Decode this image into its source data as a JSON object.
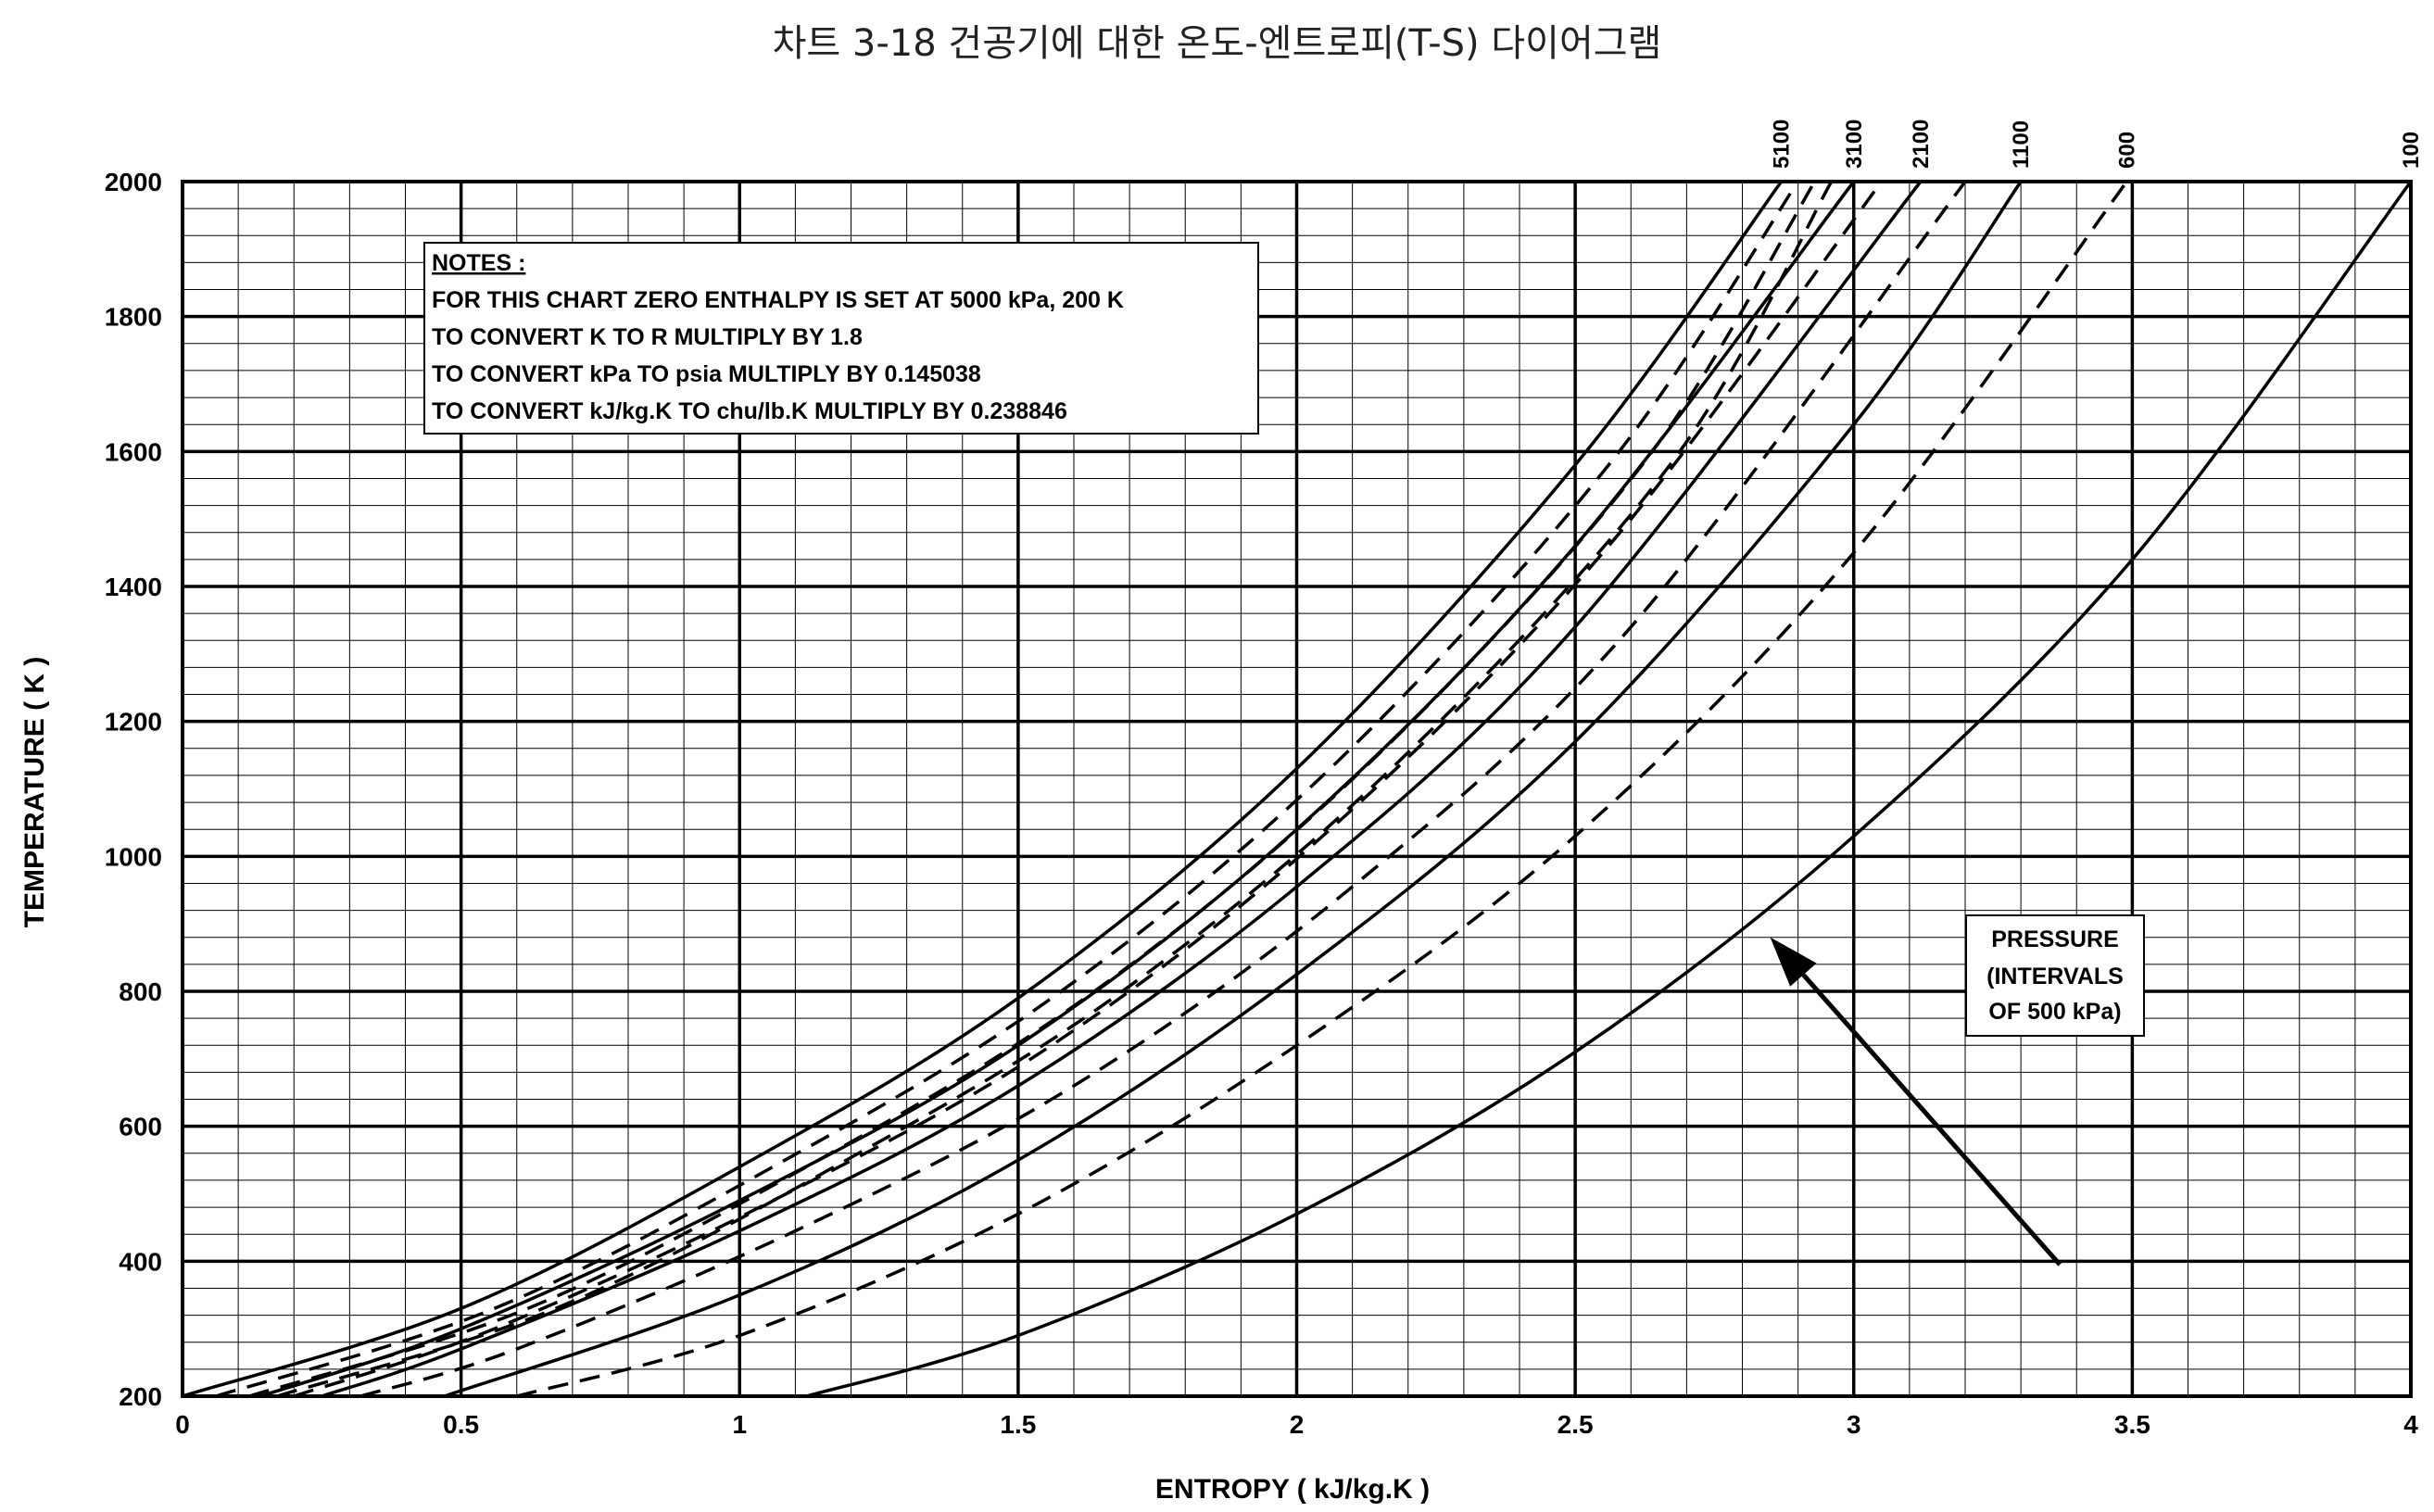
{
  "title": "차트 3-18 건공기에 대한 온도-엔트로피(T-S) 다이어그램",
  "chart_data": {
    "type": "line",
    "xlabel": "ENTROPY ( kJ/kg.K )",
    "ylabel": "TEMPERATURE ( K )",
    "xlim": [
      0,
      4
    ],
    "ylim": [
      200,
      2000
    ],
    "x_ticks": [
      "0",
      "0.5",
      "1",
      "1.5",
      "2",
      "2.5",
      "3",
      "3.5",
      "4"
    ],
    "y_ticks": [
      "200",
      "400",
      "600",
      "800",
      "1000",
      "1200",
      "1400",
      "1600",
      "1800",
      "2000"
    ],
    "grid": true,
    "series": [
      {
        "name": "5100",
        "style": "solid",
        "x": [
          0.0,
          0.5,
          1.0,
          1.5,
          2.0,
          2.5,
          2.87
        ],
        "y": [
          200,
          330,
          540,
          790,
          1130,
          1580,
          2000
        ]
      },
      {
        "name": "",
        "style": "dashed",
        "x": [
          0.06,
          0.56,
          1.06,
          1.56,
          2.06,
          2.56,
          2.9
        ],
        "y": [
          200,
          330,
          540,
          790,
          1130,
          1580,
          2000
        ]
      },
      {
        "name": "",
        "style": "dashed",
        "x": [
          0.12,
          0.62,
          1.12,
          1.62,
          2.12,
          2.62,
          2.93
        ],
        "y": [
          200,
          330,
          540,
          790,
          1130,
          1580,
          2000
        ]
      },
      {
        "name": "",
        "style": "dashed",
        "x": [
          0.17,
          0.67,
          1.17,
          1.67,
          2.17,
          2.67,
          2.96
        ],
        "y": [
          200,
          330,
          540,
          790,
          1130,
          1580,
          2000
        ]
      },
      {
        "name": "3100",
        "style": "solid",
        "x": [
          0.14,
          0.5,
          1.0,
          1.5,
          2.0,
          2.5,
          3.0
        ],
        "y": [
          200,
          300,
          490,
          720,
          1040,
          1460,
          2000
        ]
      },
      {
        "name": "",
        "style": "dashed",
        "x": [
          0.2,
          0.56,
          1.06,
          1.56,
          2.06,
          2.56,
          3.05
        ],
        "y": [
          200,
          300,
          490,
          720,
          1040,
          1460,
          2000
        ]
      },
      {
        "name": "2100",
        "style": "solid",
        "x": [
          0.25,
          0.5,
          1.0,
          1.5,
          2.0,
          2.5,
          3.12
        ],
        "y": [
          200,
          270,
          445,
          660,
          955,
          1340,
          2000
        ]
      },
      {
        "name": "",
        "style": "dashed",
        "x": [
          0.32,
          0.6,
          1.1,
          1.6,
          2.1,
          2.6,
          3.2
        ],
        "y": [
          200,
          270,
          445,
          660,
          955,
          1340,
          2000
        ]
      },
      {
        "name": "1100",
        "style": "solid",
        "x": [
          0.47,
          1.0,
          1.5,
          2.0,
          2.5,
          3.0,
          3.3
        ],
        "y": [
          200,
          350,
          550,
          825,
          1170,
          1640,
          2000
        ]
      },
      {
        "name": "600",
        "style": "dashed",
        "x": [
          0.6,
          1.0,
          1.5,
          2.0,
          2.5,
          3.0,
          3.49
        ],
        "y": [
          200,
          290,
          470,
          720,
          1030,
          1450,
          2000
        ]
      },
      {
        "name": "100",
        "style": "solid",
        "x": [
          1.12,
          1.5,
          2.0,
          2.5,
          3.0,
          3.5,
          4.0
        ],
        "y": [
          200,
          290,
          470,
          710,
          1030,
          1440,
          2000
        ]
      }
    ],
    "notes": {
      "heading": "NOTES :",
      "lines": [
        "FOR THIS CHART ZERO ENTHALPY IS SET AT 5000 kPa, 200 K",
        "TO CONVERT K TO R MULTIPLY BY 1.8",
        "TO CONVERT kPa TO psia MULTIPLY BY 0.145038",
        "TO CONVERT kJ/kg.K TO chu/lb.K MULTIPLY BY 0.238846"
      ]
    },
    "annotation": {
      "lines": [
        "PRESSURE",
        "(INTERVALS",
        "OF 500 kPa)"
      ],
      "arrow_from": [
        3.37,
        395
      ],
      "arrow_to": [
        2.85,
        880
      ]
    }
  }
}
